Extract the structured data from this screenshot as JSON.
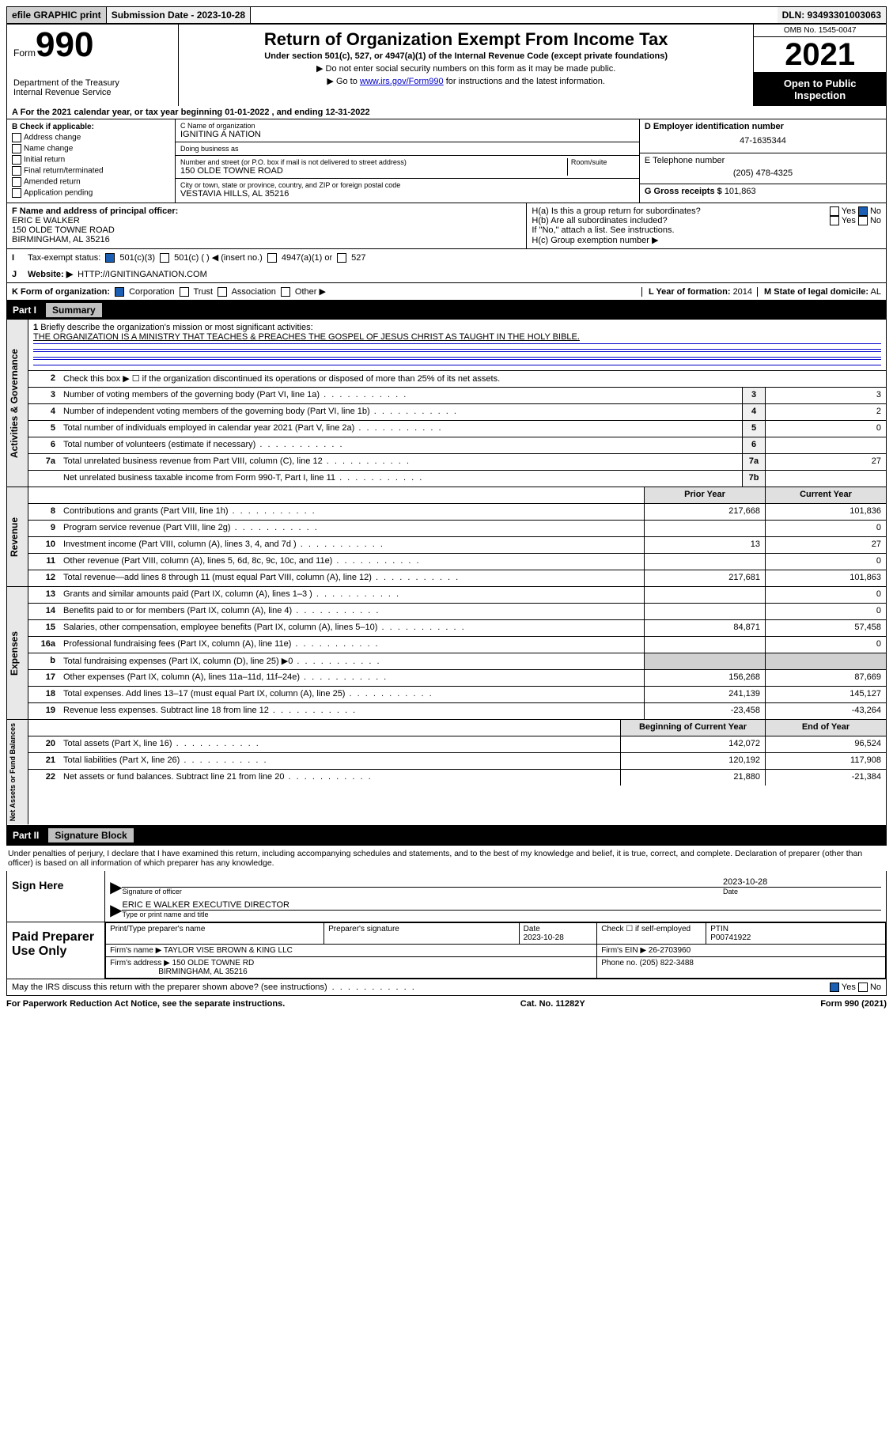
{
  "topbar": {
    "efile": "efile GRAPHIC print",
    "sub_label": "Submission Date - 2023-10-28",
    "dln": "DLN: 93493301003063"
  },
  "header": {
    "form_word": "Form",
    "form_num": "990",
    "dept": "Department of the Treasury",
    "irs": "Internal Revenue Service",
    "title": "Return of Organization Exempt From Income Tax",
    "subtitle": "Under section 501(c), 527, or 4947(a)(1) of the Internal Revenue Code (except private foundations)",
    "note1": "Do not enter social security numbers on this form as it may be made public.",
    "note2_pre": "Go to ",
    "note2_link": "www.irs.gov/Form990",
    "note2_post": " for instructions and the latest information.",
    "omb": "OMB No. 1545-0047",
    "year": "2021",
    "open": "Open to Public Inspection"
  },
  "line_a": "For the 2021 calendar year, or tax year beginning 01-01-2022   , and ending 12-31-2022",
  "box_b": {
    "hdr": "B Check if applicable:",
    "items": [
      "Address change",
      "Name change",
      "Initial return",
      "Final return/terminated",
      "Amended return",
      "Application pending"
    ]
  },
  "box_c": {
    "name_lbl": "C Name of organization",
    "name": "IGNITING A NATION",
    "dba_lbl": "Doing business as",
    "dba": "",
    "street_lbl": "Number and street (or P.O. box if mail is not delivered to street address)",
    "room_lbl": "Room/suite",
    "street": "150 OLDE TOWNE ROAD",
    "city_lbl": "City or town, state or province, country, and ZIP or foreign postal code",
    "city": "VESTAVIA HILLS, AL  35216"
  },
  "box_d": {
    "lbl": "D Employer identification number",
    "val": "47-1635344"
  },
  "box_e": {
    "lbl": "E Telephone number",
    "val": "(205) 478-4325"
  },
  "box_g": {
    "lbl": "G Gross receipts $",
    "val": "101,863"
  },
  "box_f": {
    "lbl": "F  Name and address of principal officer:",
    "name": "ERIC E WALKER",
    "addr1": "150 OLDE TOWNE ROAD",
    "addr2": "BIRMINGHAM, AL  35216"
  },
  "box_h": {
    "a": "H(a)  Is this a group return for subordinates?",
    "b": "H(b)  Are all subordinates included?",
    "b_note": "If \"No,\" attach a list. See instructions.",
    "c": "H(c)  Group exemption number ▶"
  },
  "line_i": {
    "lbl": "Tax-exempt status:",
    "opts": [
      "501(c)(3)",
      "501(c) (   ) ◀ (insert no.)",
      "4947(a)(1) or",
      "527"
    ]
  },
  "line_j": {
    "lbl": "Website: ▶",
    "val": "HTTP://IGNITINGANATION.COM"
  },
  "line_k": {
    "lbl": "K Form of organization:",
    "opts": [
      "Corporation",
      "Trust",
      "Association",
      "Other ▶"
    ]
  },
  "line_l": {
    "lbl": "L Year of formation:",
    "val": "2014"
  },
  "line_m": {
    "lbl": "M State of legal domicile:",
    "val": "AL"
  },
  "part1": {
    "num": "Part I",
    "title": "Summary"
  },
  "mission": {
    "prompt": "Briefly describe the organization's mission or most significant activities:",
    "text": "THE ORGANIZATION IS A MINISTRY THAT TEACHES & PREACHES THE GOSPEL OF JESUS CHRIST AS TAUGHT IN THE HOLY BIBLE."
  },
  "summary": {
    "line2": "Check this box ▶ ☐  if the organization discontinued its operations or disposed of more than 25% of its net assets.",
    "lines": [
      {
        "n": "3",
        "t": "Number of voting members of the governing body (Part VI, line 1a)",
        "box": "3",
        "v": "3"
      },
      {
        "n": "4",
        "t": "Number of independent voting members of the governing body (Part VI, line 1b)",
        "box": "4",
        "v": "2"
      },
      {
        "n": "5",
        "t": "Total number of individuals employed in calendar year 2021 (Part V, line 2a)",
        "box": "5",
        "v": "0"
      },
      {
        "n": "6",
        "t": "Total number of volunteers (estimate if necessary)",
        "box": "6",
        "v": ""
      },
      {
        "n": "7a",
        "t": "Total unrelated business revenue from Part VIII, column (C), line 12",
        "box": "7a",
        "v": "27"
      },
      {
        "n": "",
        "t": "Net unrelated business taxable income from Form 990-T, Part I, line 11",
        "box": "7b",
        "v": ""
      }
    ],
    "col_hdr_prior": "Prior Year",
    "col_hdr_curr": "Current Year",
    "rev": [
      {
        "n": "8",
        "t": "Contributions and grants (Part VIII, line 1h)",
        "p": "217,668",
        "c": "101,836"
      },
      {
        "n": "9",
        "t": "Program service revenue (Part VIII, line 2g)",
        "p": "",
        "c": "0"
      },
      {
        "n": "10",
        "t": "Investment income (Part VIII, column (A), lines 3, 4, and 7d )",
        "p": "13",
        "c": "27"
      },
      {
        "n": "11",
        "t": "Other revenue (Part VIII, column (A), lines 5, 6d, 8c, 9c, 10c, and 11e)",
        "p": "",
        "c": "0"
      },
      {
        "n": "12",
        "t": "Total revenue—add lines 8 through 11 (must equal Part VIII, column (A), line 12)",
        "p": "217,681",
        "c": "101,863"
      }
    ],
    "exp": [
      {
        "n": "13",
        "t": "Grants and similar amounts paid (Part IX, column (A), lines 1–3 )",
        "p": "",
        "c": "0"
      },
      {
        "n": "14",
        "t": "Benefits paid to or for members (Part IX, column (A), line 4)",
        "p": "",
        "c": "0"
      },
      {
        "n": "15",
        "t": "Salaries, other compensation, employee benefits (Part IX, column (A), lines 5–10)",
        "p": "84,871",
        "c": "57,458"
      },
      {
        "n": "16a",
        "t": "Professional fundraising fees (Part IX, column (A), line 11e)",
        "p": "",
        "c": "0"
      },
      {
        "n": "b",
        "t": "Total fundraising expenses (Part IX, column (D), line 25) ▶0",
        "p": "shade",
        "c": "shade"
      },
      {
        "n": "17",
        "t": "Other expenses (Part IX, column (A), lines 11a–11d, 11f–24e)",
        "p": "156,268",
        "c": "87,669"
      },
      {
        "n": "18",
        "t": "Total expenses. Add lines 13–17 (must equal Part IX, column (A), line 25)",
        "p": "241,139",
        "c": "145,127"
      },
      {
        "n": "19",
        "t": "Revenue less expenses. Subtract line 18 from line 12",
        "p": "-23,458",
        "c": "-43,264"
      }
    ],
    "na_hdr_b": "Beginning of Current Year",
    "na_hdr_e": "End of Year",
    "na": [
      {
        "n": "20",
        "t": "Total assets (Part X, line 16)",
        "p": "142,072",
        "c": "96,524"
      },
      {
        "n": "21",
        "t": "Total liabilities (Part X, line 26)",
        "p": "120,192",
        "c": "117,908"
      },
      {
        "n": "22",
        "t": "Net assets or fund balances. Subtract line 21 from line 20",
        "p": "21,880",
        "c": "-21,384"
      }
    ]
  },
  "part2": {
    "num": "Part II",
    "title": "Signature Block"
  },
  "penalty": "Under penalties of perjury, I declare that I have examined this return, including accompanying schedules and statements, and to the best of my knowledge and belief, it is true, correct, and complete. Declaration of preparer (other than officer) is based on all information of which preparer has any knowledge.",
  "sign": {
    "here": "Sign Here",
    "sig_lbl": "Signature of officer",
    "date_lbl": "Date",
    "date": "2023-10-28",
    "name": "ERIC E WALKER  EXECUTIVE DIRECTOR",
    "name_lbl": "Type or print name and title"
  },
  "paid": {
    "hdr": "Paid Preparer Use Only",
    "col1": "Print/Type preparer's name",
    "col2": "Preparer's signature",
    "col3": "Date",
    "date": "2023-10-28",
    "col4": "Check ☐ if self-employed",
    "col5_lbl": "PTIN",
    "ptin": "P00741922",
    "firm_lbl": "Firm's name    ▶",
    "firm": "TAYLOR VISE BROWN & KING LLC",
    "ein_lbl": "Firm's EIN ▶",
    "ein": "26-2703960",
    "addr_lbl": "Firm's address ▶",
    "addr1": "150 OLDE TOWNE RD",
    "addr2": "BIRMINGHAM, AL  35216",
    "ph_lbl": "Phone no.",
    "phone": "(205) 822-3488"
  },
  "discuss": "May the IRS discuss this return with the preparer shown above? (see instructions)",
  "footer": {
    "left": "For Paperwork Reduction Act Notice, see the separate instructions.",
    "mid": "Cat. No. 11282Y",
    "right": "Form 990 (2021)"
  },
  "yes": "Yes",
  "no": "No"
}
